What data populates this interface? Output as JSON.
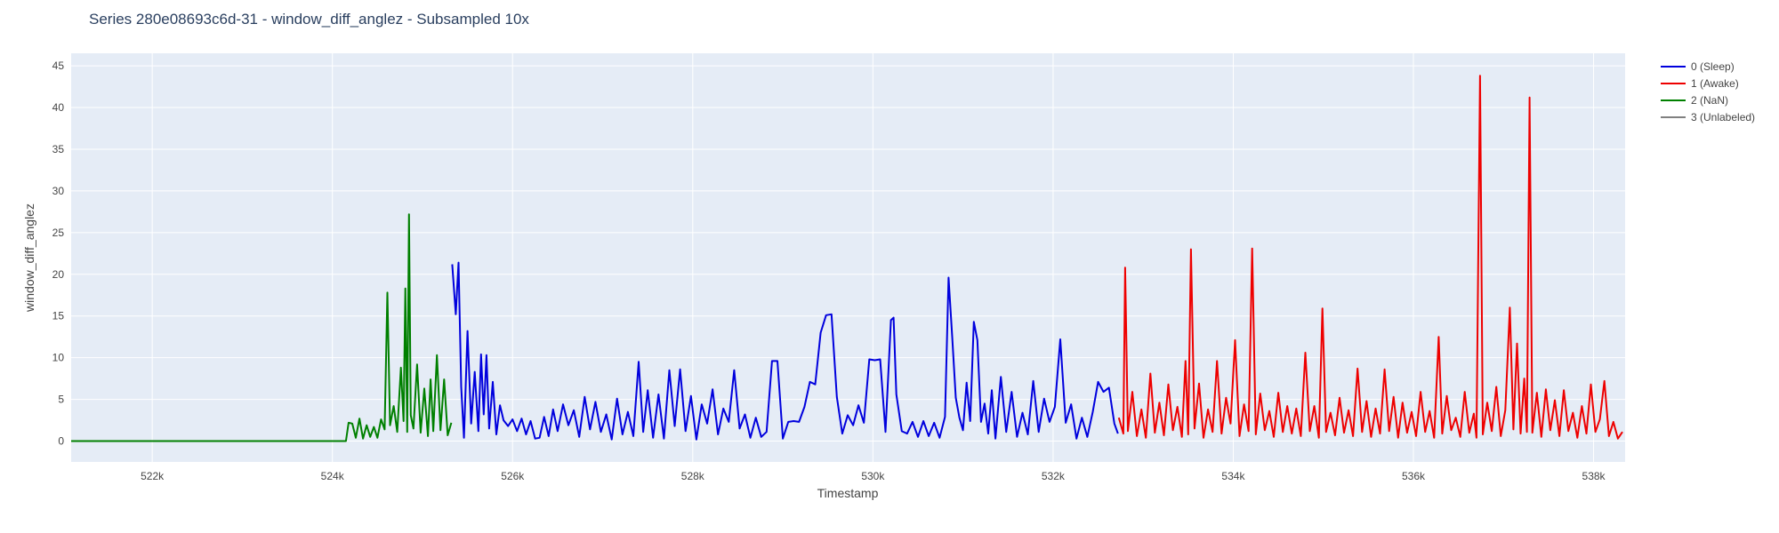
{
  "chart_data": {
    "type": "line",
    "title": "Series 280e08693c6d-31 - window_diff_anglez - Subsampled 10x",
    "xlabel": "Timestamp",
    "ylabel": "window_diff_anglez",
    "xlim": [
      521100,
      538350
    ],
    "ylim": [
      -2.5,
      46.5
    ],
    "xticks": [
      522000,
      524000,
      526000,
      528000,
      530000,
      532000,
      534000,
      536000,
      538000
    ],
    "xtick_labels": [
      "522k",
      "524k",
      "526k",
      "528k",
      "530k",
      "532k",
      "534k",
      "536k",
      "538k"
    ],
    "yticks": [
      0,
      5,
      10,
      15,
      20,
      25,
      30,
      35,
      40,
      45
    ],
    "ytick_labels": [
      "0",
      "5",
      "10",
      "15",
      "20",
      "25",
      "30",
      "35",
      "40",
      "45"
    ],
    "grid": true,
    "legend_position": "top-right",
    "colors": {
      "plot_bg": "#e5ecf6",
      "grid": "#ffffff"
    },
    "series": [
      {
        "name": "0 (Sleep)",
        "color": "#0000dd",
        "points": [
          [
            525330,
            21.2
          ],
          [
            525370,
            15.2
          ],
          [
            525400,
            21.4
          ],
          [
            525430,
            6.5
          ],
          [
            525460,
            0.4
          ],
          [
            525500,
            13.2
          ],
          [
            525540,
            2.1
          ],
          [
            525580,
            8.3
          ],
          [
            525620,
            1.2
          ],
          [
            525650,
            10.4
          ],
          [
            525680,
            3.2
          ],
          [
            525710,
            10.3
          ],
          [
            525740,
            1.5
          ],
          [
            525780,
            7.1
          ],
          [
            525820,
            0.8
          ],
          [
            525860,
            4.3
          ],
          [
            525900,
            2.5
          ],
          [
            525950,
            1.8
          ],
          [
            526000,
            2.6
          ],
          [
            526050,
            1.2
          ],
          [
            526100,
            2.7
          ],
          [
            526150,
            0.8
          ],
          [
            526200,
            2.4
          ],
          [
            526250,
            0.3
          ],
          [
            526300,
            0.4
          ],
          [
            526350,
            2.9
          ],
          [
            526400,
            0.6
          ],
          [
            526450,
            3.8
          ],
          [
            526500,
            1.2
          ],
          [
            526560,
            4.4
          ],
          [
            526620,
            1.9
          ],
          [
            526680,
            3.7
          ],
          [
            526740,
            0.5
          ],
          [
            526800,
            5.3
          ],
          [
            526860,
            1.4
          ],
          [
            526920,
            4.7
          ],
          [
            526980,
            1.1
          ],
          [
            527040,
            3.2
          ],
          [
            527100,
            0.2
          ],
          [
            527160,
            5.1
          ],
          [
            527220,
            0.8
          ],
          [
            527280,
            3.5
          ],
          [
            527340,
            0.6
          ],
          [
            527400,
            9.5
          ],
          [
            527450,
            1.1
          ],
          [
            527500,
            6.1
          ],
          [
            527560,
            0.4
          ],
          [
            527620,
            5.6
          ],
          [
            527680,
            0.3
          ],
          [
            527740,
            8.5
          ],
          [
            527800,
            1.8
          ],
          [
            527860,
            8.6
          ],
          [
            527920,
            1.2
          ],
          [
            527980,
            5.4
          ],
          [
            528040,
            0.2
          ],
          [
            528100,
            4.4
          ],
          [
            528160,
            2.1
          ],
          [
            528220,
            6.2
          ],
          [
            528280,
            0.8
          ],
          [
            528340,
            3.9
          ],
          [
            528400,
            2.3
          ],
          [
            528460,
            8.5
          ],
          [
            528520,
            1.5
          ],
          [
            528580,
            3.2
          ],
          [
            528640,
            0.4
          ],
          [
            528700,
            2.8
          ],
          [
            528760,
            0.5
          ],
          [
            528820,
            1.1
          ],
          [
            528880,
            9.6
          ],
          [
            528940,
            9.6
          ],
          [
            529000,
            0.3
          ],
          [
            529060,
            2.3
          ],
          [
            529120,
            2.4
          ],
          [
            529180,
            2.3
          ],
          [
            529240,
            4.1
          ],
          [
            529300,
            7.1
          ],
          [
            529360,
            6.8
          ],
          [
            529420,
            13.0
          ],
          [
            529480,
            15.1
          ],
          [
            529540,
            15.2
          ],
          [
            529600,
            5.3
          ],
          [
            529660,
            0.9
          ],
          [
            529720,
            3.1
          ],
          [
            529780,
            1.9
          ],
          [
            529840,
            4.3
          ],
          [
            529900,
            2.2
          ],
          [
            529960,
            9.8
          ],
          [
            530020,
            9.7
          ],
          [
            530080,
            9.8
          ],
          [
            530140,
            1.1
          ],
          [
            530200,
            14.5
          ],
          [
            530230,
            14.8
          ],
          [
            530260,
            5.6
          ],
          [
            530320,
            1.2
          ],
          [
            530380,
            0.9
          ],
          [
            530440,
            2.3
          ],
          [
            530500,
            0.5
          ],
          [
            530560,
            2.4
          ],
          [
            530620,
            0.6
          ],
          [
            530680,
            2.2
          ],
          [
            530740,
            0.4
          ],
          [
            530800,
            2.9
          ],
          [
            530840,
            19.6
          ],
          [
            530880,
            12.5
          ],
          [
            530920,
            5.2
          ],
          [
            530960,
            2.8
          ],
          [
            531000,
            1.3
          ],
          [
            531040,
            7.0
          ],
          [
            531080,
            2.4
          ],
          [
            531120,
            14.3
          ],
          [
            531160,
            12.1
          ],
          [
            531200,
            2.3
          ],
          [
            531240,
            4.5
          ],
          [
            531280,
            0.9
          ],
          [
            531320,
            6.1
          ],
          [
            531360,
            0.3
          ],
          [
            531420,
            7.7
          ],
          [
            531480,
            1.1
          ],
          [
            531540,
            5.9
          ],
          [
            531600,
            0.5
          ],
          [
            531660,
            3.4
          ],
          [
            531720,
            0.8
          ],
          [
            531780,
            7.2
          ],
          [
            531840,
            1.1
          ],
          [
            531900,
            5.1
          ],
          [
            531960,
            2.3
          ],
          [
            532020,
            4.1
          ],
          [
            532080,
            12.2
          ],
          [
            532140,
            2.2
          ],
          [
            532200,
            4.4
          ],
          [
            532260,
            0.3
          ],
          [
            532320,
            2.8
          ],
          [
            532380,
            0.5
          ],
          [
            532440,
            3.5
          ],
          [
            532500,
            7.1
          ],
          [
            532560,
            5.9
          ],
          [
            532620,
            6.4
          ],
          [
            532680,
            2.1
          ],
          [
            532720,
            0.9
          ]
        ]
      },
      {
        "name": "1 (Awake)",
        "color": "#ee0000",
        "points": [
          [
            532730,
            2.8
          ],
          [
            532780,
            0.9
          ],
          [
            532800,
            20.8
          ],
          [
            532830,
            1.2
          ],
          [
            532880,
            5.9
          ],
          [
            532930,
            0.6
          ],
          [
            532980,
            3.8
          ],
          [
            533030,
            0.4
          ],
          [
            533080,
            8.1
          ],
          [
            533130,
            1.0
          ],
          [
            533180,
            4.6
          ],
          [
            533230,
            0.7
          ],
          [
            533280,
            6.8
          ],
          [
            533330,
            1.3
          ],
          [
            533380,
            4.1
          ],
          [
            533430,
            0.5
          ],
          [
            533470,
            9.6
          ],
          [
            533500,
            0.8
          ],
          [
            533530,
            23.0
          ],
          [
            533570,
            1.5
          ],
          [
            533620,
            6.9
          ],
          [
            533670,
            0.4
          ],
          [
            533720,
            3.8
          ],
          [
            533770,
            1.1
          ],
          [
            533820,
            9.6
          ],
          [
            533870,
            0.9
          ],
          [
            533920,
            5.2
          ],
          [
            533970,
            2.1
          ],
          [
            534020,
            12.1
          ],
          [
            534070,
            0.6
          ],
          [
            534120,
            4.4
          ],
          [
            534170,
            1.2
          ],
          [
            534210,
            23.1
          ],
          [
            534250,
            0.8
          ],
          [
            534300,
            5.7
          ],
          [
            534350,
            1.3
          ],
          [
            534400,
            3.6
          ],
          [
            534450,
            0.5
          ],
          [
            534500,
            5.8
          ],
          [
            534550,
            1.1
          ],
          [
            534600,
            4.2
          ],
          [
            534650,
            0.9
          ],
          [
            534700,
            3.9
          ],
          [
            534750,
            0.6
          ],
          [
            534800,
            10.6
          ],
          [
            534850,
            1.2
          ],
          [
            534900,
            4.2
          ],
          [
            534950,
            0.4
          ],
          [
            534990,
            15.9
          ],
          [
            535030,
            1.1
          ],
          [
            535080,
            3.4
          ],
          [
            535130,
            0.7
          ],
          [
            535180,
            5.2
          ],
          [
            535230,
            1.0
          ],
          [
            535280,
            3.7
          ],
          [
            535330,
            0.6
          ],
          [
            535380,
            8.7
          ],
          [
            535430,
            1.1
          ],
          [
            535480,
            4.8
          ],
          [
            535530,
            0.5
          ],
          [
            535580,
            3.9
          ],
          [
            535630,
            0.9
          ],
          [
            535680,
            8.6
          ],
          [
            535730,
            1.2
          ],
          [
            535780,
            5.3
          ],
          [
            535830,
            0.4
          ],
          [
            535880,
            4.6
          ],
          [
            535930,
            1.0
          ],
          [
            535980,
            3.5
          ],
          [
            536030,
            0.6
          ],
          [
            536080,
            5.9
          ],
          [
            536130,
            1.1
          ],
          [
            536180,
            3.6
          ],
          [
            536230,
            0.4
          ],
          [
            536280,
            12.5
          ],
          [
            536320,
            0.9
          ],
          [
            536370,
            5.4
          ],
          [
            536420,
            1.3
          ],
          [
            536470,
            2.8
          ],
          [
            536520,
            0.5
          ],
          [
            536570,
            5.9
          ],
          [
            536620,
            1.0
          ],
          [
            536670,
            3.3
          ],
          [
            536700,
            0.4
          ],
          [
            536740,
            43.8
          ],
          [
            536770,
            0.8
          ],
          [
            536820,
            4.6
          ],
          [
            536870,
            1.2
          ],
          [
            536920,
            6.5
          ],
          [
            536970,
            0.6
          ],
          [
            537020,
            3.7
          ],
          [
            537070,
            16.0
          ],
          [
            537110,
            1.4
          ],
          [
            537150,
            11.7
          ],
          [
            537190,
            0.9
          ],
          [
            537230,
            7.5
          ],
          [
            537260,
            1.1
          ],
          [
            537290,
            41.2
          ],
          [
            537320,
            1.0
          ],
          [
            537370,
            5.8
          ],
          [
            537420,
            0.5
          ],
          [
            537470,
            6.2
          ],
          [
            537520,
            1.3
          ],
          [
            537570,
            4.9
          ],
          [
            537620,
            0.6
          ],
          [
            537670,
            6.1
          ],
          [
            537720,
            1.2
          ],
          [
            537770,
            3.4
          ],
          [
            537820,
            0.4
          ],
          [
            537870,
            4.2
          ],
          [
            537920,
            0.9
          ],
          [
            537970,
            6.8
          ],
          [
            538020,
            1.1
          ],
          [
            538070,
            2.6
          ],
          [
            538120,
            7.2
          ],
          [
            538170,
            0.6
          ],
          [
            538220,
            2.3
          ],
          [
            538270,
            0.3
          ],
          [
            538320,
            1.1
          ]
        ]
      },
      {
        "name": "2 (NaN)",
        "color": "#008000",
        "points": [
          [
            521100,
            0.0
          ],
          [
            524150,
            0.0
          ],
          [
            524180,
            2.2
          ],
          [
            524220,
            2.1
          ],
          [
            524260,
            0.4
          ],
          [
            524300,
            2.7
          ],
          [
            524340,
            0.3
          ],
          [
            524380,
            1.9
          ],
          [
            524420,
            0.5
          ],
          [
            524460,
            1.7
          ],
          [
            524500,
            0.4
          ],
          [
            524540,
            2.6
          ],
          [
            524580,
            1.4
          ],
          [
            524610,
            17.8
          ],
          [
            524640,
            1.9
          ],
          [
            524680,
            4.2
          ],
          [
            524720,
            1.1
          ],
          [
            524760,
            8.8
          ],
          [
            524790,
            2.4
          ],
          [
            524810,
            18.3
          ],
          [
            524830,
            1.1
          ],
          [
            524850,
            27.2
          ],
          [
            524870,
            3.1
          ],
          [
            524900,
            1.5
          ],
          [
            524940,
            9.2
          ],
          [
            524980,
            1.0
          ],
          [
            525020,
            6.3
          ],
          [
            525060,
            0.6
          ],
          [
            525090,
            7.4
          ],
          [
            525120,
            1.2
          ],
          [
            525160,
            10.3
          ],
          [
            525200,
            1.3
          ],
          [
            525240,
            7.4
          ],
          [
            525280,
            0.7
          ],
          [
            525320,
            2.2
          ]
        ]
      },
      {
        "name": "3 (Unlabeled)",
        "color": "#808080",
        "points": []
      }
    ]
  }
}
